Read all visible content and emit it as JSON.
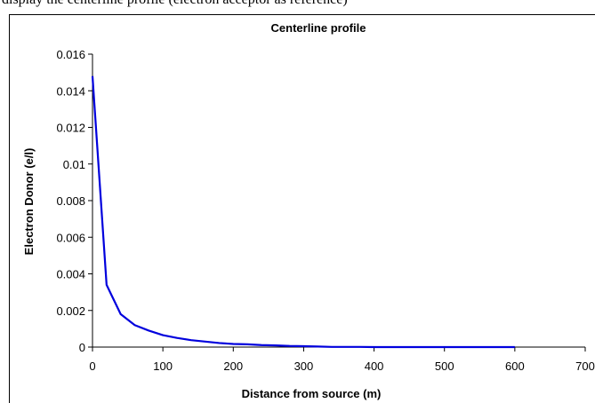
{
  "page": {
    "top_caption": "display the centerline profile (electron acceptor as reference)"
  },
  "chart_data": {
    "type": "line",
    "title": "Centerline profile",
    "xlabel": "Distance from source (m)",
    "ylabel": "Electron Donor (e/l)",
    "xlim": [
      0,
      700
    ],
    "ylim": [
      0,
      0.016
    ],
    "x_ticks": [
      "0",
      "100",
      "200",
      "300",
      "400",
      "500",
      "600",
      "700"
    ],
    "y_ticks": [
      "0",
      "0.002",
      "0.004",
      "0.006",
      "0.008",
      "0.01",
      "0.012",
      "0.014",
      "0.016"
    ],
    "grid": false,
    "legend": "none",
    "series": [
      {
        "color": "#0000dd",
        "x": [
          0,
          20,
          40,
          60,
          80,
          100,
          120,
          140,
          160,
          180,
          200,
          220,
          240,
          260,
          280,
          300,
          320,
          340,
          360,
          380,
          400,
          450,
          500,
          550,
          600
        ],
        "y": [
          0.0148,
          0.0034,
          0.0018,
          0.0012,
          0.0009,
          0.00065,
          0.0005,
          0.00038,
          0.0003,
          0.00022,
          0.00017,
          0.00015,
          0.00011,
          9e-05,
          6e-05,
          5e-05,
          3e-05,
          1e-05,
          1e-05,
          1e-05,
          0.0,
          0.0,
          0.0,
          0.0,
          0.0
        ]
      }
    ]
  }
}
